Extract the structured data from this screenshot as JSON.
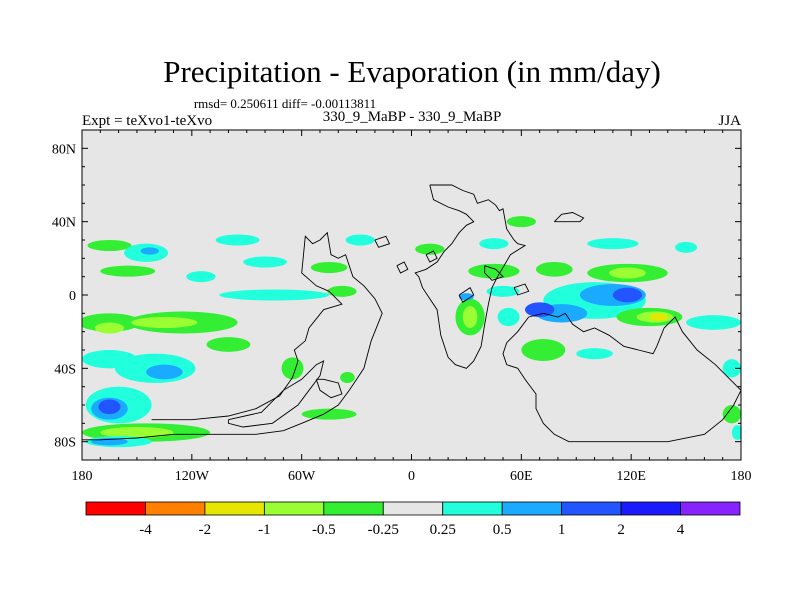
{
  "chart_data": {
    "type": "heatmap",
    "title": "Precipitation - Evaporation (in mm/day)",
    "rmsd_label": "rmsd= 0.250611 diff= -0.00113811",
    "left_label": "Expt = teXvo1-teXvo",
    "center_label": "330_9_MaBP - 330_9_MaBP",
    "right_label": "JJA",
    "x_range": [
      -180,
      180
    ],
    "y_range": [
      -90,
      90
    ],
    "x_ticks": [
      {
        "value": -180,
        "label": "180"
      },
      {
        "value": -120,
        "label": "120W"
      },
      {
        "value": -60,
        "label": "60W"
      },
      {
        "value": 0,
        "label": "0"
      },
      {
        "value": 60,
        "label": "60E"
      },
      {
        "value": 120,
        "label": "120E"
      },
      {
        "value": 180,
        "label": "180"
      }
    ],
    "y_ticks": [
      {
        "value": 80,
        "label": "80N"
      },
      {
        "value": 40,
        "label": "40N"
      },
      {
        "value": 0,
        "label": "0"
      },
      {
        "value": -40,
        "label": "40S"
      },
      {
        "value": -80,
        "label": "80S"
      }
    ],
    "colorbar": {
      "colors": [
        "#ff0000",
        "#ff8000",
        "#e6e600",
        "#99ff33",
        "#33ee33",
        "#e6e6e6",
        "#22ffdd",
        "#1aaaff",
        "#2255ff",
        "#1a1aff",
        "#8822ff"
      ],
      "levels": [
        -4,
        -2,
        -1,
        -0.5,
        -0.25,
        0.25,
        0.5,
        1,
        2,
        4
      ],
      "level_labels": [
        "-4",
        "-2",
        "-1",
        "-0.5",
        "-0.25",
        "0.25",
        "0.5",
        "1",
        "2",
        "4"
      ]
    },
    "colors": {
      "background": "#e6e6e6",
      "neg_025": "#33ee33",
      "neg_05": "#99ff33",
      "neg_1": "#e6e600",
      "pos_025": "#22ffdd",
      "pos_05": "#1aaaff",
      "pos_1": "#2255ff",
      "pos_2": "#1a1aff"
    },
    "regions": [
      {
        "lon": 60,
        "lat": 40,
        "rx": 8,
        "ry": 3,
        "level": "neg_025"
      },
      {
        "lon": 45,
        "lat": 28,
        "rx": 8,
        "ry": 3,
        "level": "pos_025"
      },
      {
        "lon": 45,
        "lat": 13,
        "rx": 14,
        "ry": 4,
        "level": "neg_025"
      },
      {
        "lon": 78,
        "lat": 14,
        "rx": 10,
        "ry": 4,
        "level": "neg_025"
      },
      {
        "lon": 50,
        "lat": 2,
        "rx": 9,
        "ry": 3,
        "level": "pos_025"
      },
      {
        "lon": 118,
        "lat": 12,
        "rx": 22,
        "ry": 5,
        "level": "neg_025"
      },
      {
        "lon": 118,
        "lat": 12,
        "rx": 10,
        "ry": 3,
        "level": "neg_05"
      },
      {
        "lon": 110,
        "lat": 28,
        "rx": 14,
        "ry": 3,
        "level": "pos_025"
      },
      {
        "lon": 150,
        "lat": 26,
        "rx": 6,
        "ry": 3,
        "level": "pos_025"
      },
      {
        "lon": 100,
        "lat": -3,
        "rx": 28,
        "ry": 10,
        "level": "pos_025"
      },
      {
        "lon": 110,
        "lat": 0,
        "rx": 18,
        "ry": 6,
        "level": "pos_05"
      },
      {
        "lon": 118,
        "lat": 0,
        "rx": 8,
        "ry": 4,
        "level": "pos_1"
      },
      {
        "lon": 82,
        "lat": -10,
        "rx": 14,
        "ry": 5,
        "level": "pos_05"
      },
      {
        "lon": 70,
        "lat": -8,
        "rx": 8,
        "ry": 4,
        "level": "pos_1"
      },
      {
        "lon": 130,
        "lat": -12,
        "rx": 18,
        "ry": 5,
        "level": "neg_025"
      },
      {
        "lon": 133,
        "lat": -12,
        "rx": 10,
        "ry": 3,
        "level": "neg_05"
      },
      {
        "lon": 135,
        "lat": -12,
        "rx": 5,
        "ry": 2,
        "level": "neg_1"
      },
      {
        "lon": 165,
        "lat": -15,
        "rx": 15,
        "ry": 4,
        "level": "pos_025"
      },
      {
        "lon": 32,
        "lat": -12,
        "rx": 8,
        "ry": 10,
        "level": "neg_025"
      },
      {
        "lon": 32,
        "lat": -12,
        "rx": 4,
        "ry": 6,
        "level": "neg_05"
      },
      {
        "lon": 30,
        "lat": -1,
        "rx": 4,
        "ry": 2,
        "level": "pos_05"
      },
      {
        "lon": 53,
        "lat": -12,
        "rx": 6,
        "ry": 5,
        "level": "pos_025"
      },
      {
        "lon": 72,
        "lat": -30,
        "rx": 12,
        "ry": 6,
        "level": "neg_025"
      },
      {
        "lon": 100,
        "lat": -32,
        "rx": 10,
        "ry": 3,
        "level": "pos_025"
      },
      {
        "lon": 10,
        "lat": 25,
        "rx": 8,
        "ry": 3,
        "level": "neg_025"
      },
      {
        "lon": -75,
        "lat": 0,
        "rx": 30,
        "ry": 3,
        "level": "pos_025"
      },
      {
        "lon": -38,
        "lat": 2,
        "rx": 8,
        "ry": 3,
        "level": "neg_025"
      },
      {
        "lon": -45,
        "lat": 15,
        "rx": 10,
        "ry": 3,
        "level": "neg_025"
      },
      {
        "lon": -115,
        "lat": 10,
        "rx": 8,
        "ry": 3,
        "level": "pos_025"
      },
      {
        "lon": -80,
        "lat": 18,
        "rx": 12,
        "ry": 3,
        "level": "pos_025"
      },
      {
        "lon": -28,
        "lat": 30,
        "rx": 8,
        "ry": 3,
        "level": "pos_025"
      },
      {
        "lon": -95,
        "lat": 30,
        "rx": 12,
        "ry": 3,
        "level": "pos_025"
      },
      {
        "lon": -165,
        "lat": 27,
        "rx": 12,
        "ry": 3,
        "level": "neg_025"
      },
      {
        "lon": -145,
        "lat": 23,
        "rx": 12,
        "ry": 5,
        "level": "pos_025"
      },
      {
        "lon": -143,
        "lat": 24,
        "rx": 5,
        "ry": 2,
        "level": "pos_05"
      },
      {
        "lon": -155,
        "lat": 13,
        "rx": 15,
        "ry": 3,
        "level": "neg_025"
      },
      {
        "lon": -165,
        "lat": -15,
        "rx": 17,
        "ry": 5,
        "level": "neg_025"
      },
      {
        "lon": -125,
        "lat": -15,
        "rx": 30,
        "ry": 6,
        "level": "neg_025"
      },
      {
        "lon": -135,
        "lat": -15,
        "rx": 18,
        "ry": 3,
        "level": "neg_05"
      },
      {
        "lon": -165,
        "lat": -18,
        "rx": 8,
        "ry": 3,
        "level": "neg_05"
      },
      {
        "lon": -100,
        "lat": -27,
        "rx": 12,
        "ry": 4,
        "level": "neg_025"
      },
      {
        "lon": -165,
        "lat": -35,
        "rx": 15,
        "ry": 5,
        "level": "pos_025"
      },
      {
        "lon": -140,
        "lat": -40,
        "rx": 22,
        "ry": 8,
        "level": "pos_025"
      },
      {
        "lon": -135,
        "lat": -42,
        "rx": 10,
        "ry": 4,
        "level": "pos_05"
      },
      {
        "lon": -160,
        "lat": -60,
        "rx": 18,
        "ry": 10,
        "level": "pos_025"
      },
      {
        "lon": -165,
        "lat": -62,
        "rx": 10,
        "ry": 6,
        "level": "pos_05"
      },
      {
        "lon": -165,
        "lat": -61,
        "rx": 6,
        "ry": 4,
        "level": "pos_1"
      },
      {
        "lon": -145,
        "lat": -75,
        "rx": 35,
        "ry": 5,
        "level": "neg_025"
      },
      {
        "lon": -150,
        "lat": -75,
        "rx": 20,
        "ry": 3,
        "level": "neg_05"
      },
      {
        "lon": -160,
        "lat": -80,
        "rx": 18,
        "ry": 3,
        "level": "pos_025"
      },
      {
        "lon": -165,
        "lat": -80,
        "rx": 10,
        "ry": 2,
        "level": "pos_05"
      },
      {
        "lon": -65,
        "lat": -40,
        "rx": 6,
        "ry": 6,
        "level": "neg_025"
      },
      {
        "lon": -35,
        "lat": -45,
        "rx": 4,
        "ry": 3,
        "level": "neg_025"
      },
      {
        "lon": -45,
        "lat": -65,
        "rx": 15,
        "ry": 3,
        "level": "neg_025"
      },
      {
        "lon": 175,
        "lat": -40,
        "rx": 5,
        "ry": 5,
        "level": "pos_025"
      },
      {
        "lon": 175,
        "lat": -65,
        "rx": 5,
        "ry": 5,
        "level": "neg_025"
      },
      {
        "lon": 178,
        "lat": -75,
        "rx": 3,
        "ry": 4,
        "level": "pos_025"
      }
    ],
    "outlines": [
      [
        [
          -142,
          -68
        ],
        [
          -120,
          -68
        ],
        [
          -100,
          -66
        ],
        [
          -85,
          -62
        ],
        [
          -72,
          -55
        ],
        [
          -65,
          -45
        ],
        [
          -62,
          -36
        ],
        [
          -64,
          -30
        ],
        [
          -58,
          -25
        ],
        [
          -56,
          -18
        ],
        [
          -48,
          -8
        ],
        [
          -38,
          -5
        ],
        [
          -45,
          2
        ],
        [
          -52,
          5
        ],
        [
          -60,
          12
        ],
        [
          -58,
          32
        ],
        [
          -54,
          28
        ],
        [
          -50,
          30
        ],
        [
          -46,
          34
        ],
        [
          -44,
          22
        ],
        [
          -40,
          20
        ],
        [
          -36,
          22
        ],
        [
          -32,
          10
        ],
        [
          -26,
          5
        ],
        [
          -20,
          -2
        ],
        [
          -16,
          -10
        ],
        [
          -22,
          -25
        ],
        [
          -26,
          -40
        ],
        [
          -34,
          -52
        ],
        [
          -40,
          -60
        ],
        [
          -48,
          -65
        ],
        [
          -60,
          -70
        ],
        [
          -70,
          -74
        ],
        [
          -85,
          -76
        ],
        [
          -110,
          -76
        ],
        [
          -130,
          -76
        ],
        [
          -150,
          -78
        ],
        [
          -170,
          -79
        ],
        [
          -180,
          -79
        ]
      ],
      [
        [
          -100,
          -68
        ],
        [
          -82,
          -64
        ],
        [
          -70,
          -52
        ],
        [
          -60,
          -46
        ],
        [
          -52,
          -38
        ],
        [
          -48,
          -36
        ],
        [
          -50,
          -44
        ],
        [
          -56,
          -52
        ],
        [
          -62,
          -60
        ],
        [
          -76,
          -70
        ],
        [
          -92,
          -72
        ],
        [
          -100,
          -70
        ],
        [
          -100,
          -68
        ]
      ],
      [
        [
          -52,
          -46
        ],
        [
          -48,
          -46
        ],
        [
          -40,
          -48
        ],
        [
          -38,
          -54
        ],
        [
          -44,
          -56
        ],
        [
          -50,
          -52
        ],
        [
          -52,
          -46
        ]
      ],
      [
        [
          10,
          60
        ],
        [
          22,
          60
        ],
        [
          28,
          57
        ],
        [
          34,
          55
        ],
        [
          36,
          50
        ],
        [
          42,
          52
        ],
        [
          46,
          49
        ],
        [
          48,
          46
        ],
        [
          50,
          47
        ],
        [
          52,
          36
        ],
        [
          56,
          30
        ],
        [
          58,
          28
        ],
        [
          62,
          27
        ],
        [
          54,
          22
        ],
        [
          50,
          15
        ],
        [
          47,
          10
        ],
        [
          44,
          4
        ],
        [
          42,
          -5
        ],
        [
          40,
          -16
        ],
        [
          38,
          -28
        ],
        [
          34,
          -36
        ],
        [
          30,
          -40
        ],
        [
          24,
          -38
        ],
        [
          20,
          -34
        ],
        [
          16,
          -22
        ],
        [
          14,
          -8
        ],
        [
          10,
          -2
        ],
        [
          6,
          4
        ],
        [
          4,
          10
        ],
        [
          2,
          12
        ],
        [
          8,
          14
        ],
        [
          14,
          18
        ],
        [
          18,
          24
        ],
        [
          22,
          28
        ],
        [
          26,
          34
        ],
        [
          30,
          38
        ],
        [
          34,
          40
        ],
        [
          30,
          44
        ],
        [
          26,
          46
        ],
        [
          20,
          48
        ],
        [
          12,
          52
        ],
        [
          10,
          60
        ]
      ],
      [
        [
          64,
          -12
        ],
        [
          72,
          -10
        ],
        [
          80,
          -12
        ],
        [
          84,
          -10
        ],
        [
          88,
          -16
        ],
        [
          94,
          -20
        ],
        [
          100,
          -18
        ],
        [
          108,
          -22
        ],
        [
          116,
          -28
        ],
        [
          124,
          -30
        ],
        [
          132,
          -32
        ],
        [
          134,
          -28
        ],
        [
          138,
          -18
        ],
        [
          144,
          -12
        ],
        [
          148,
          -20
        ],
        [
          156,
          -30
        ],
        [
          166,
          -38
        ],
        [
          174,
          -46
        ],
        [
          180,
          -52
        ],
        [
          176,
          -60
        ],
        [
          170,
          -68
        ],
        [
          160,
          -76
        ],
        [
          140,
          -80
        ],
        [
          110,
          -80
        ],
        [
          86,
          -80
        ],
        [
          78,
          -76
        ],
        [
          72,
          -70
        ],
        [
          68,
          -62
        ],
        [
          68,
          -54
        ],
        [
          62,
          -46
        ],
        [
          58,
          -40
        ],
        [
          52,
          -38
        ],
        [
          50,
          -32
        ],
        [
          52,
          -26
        ],
        [
          58,
          -20
        ],
        [
          64,
          -12
        ]
      ],
      [
        [
          78,
          40
        ],
        [
          82,
          44
        ],
        [
          88,
          45
        ],
        [
          94,
          42
        ],
        [
          92,
          40
        ],
        [
          86,
          40
        ],
        [
          78,
          40
        ]
      ],
      [
        [
          40,
          16
        ],
        [
          46,
          14
        ],
        [
          50,
          10
        ],
        [
          44,
          8
        ],
        [
          40,
          12
        ],
        [
          40,
          16
        ]
      ],
      [
        [
          56,
          4
        ],
        [
          62,
          6
        ],
        [
          64,
          2
        ],
        [
          58,
          0
        ],
        [
          56,
          4
        ]
      ],
      [
        [
          26,
          0
        ],
        [
          32,
          4
        ],
        [
          34,
          0
        ],
        [
          28,
          -4
        ],
        [
          26,
          0
        ]
      ],
      [
        [
          8,
          22
        ],
        [
          12,
          24
        ],
        [
          14,
          20
        ],
        [
          10,
          18
        ],
        [
          8,
          22
        ]
      ],
      [
        [
          -8,
          16
        ],
        [
          -4,
          18
        ],
        [
          -2,
          14
        ],
        [
          -6,
          12
        ],
        [
          -8,
          16
        ]
      ],
      [
        [
          -20,
          30
        ],
        [
          -14,
          32
        ],
        [
          -12,
          28
        ],
        [
          -18,
          26
        ],
        [
          -20,
          30
        ]
      ]
    ]
  }
}
